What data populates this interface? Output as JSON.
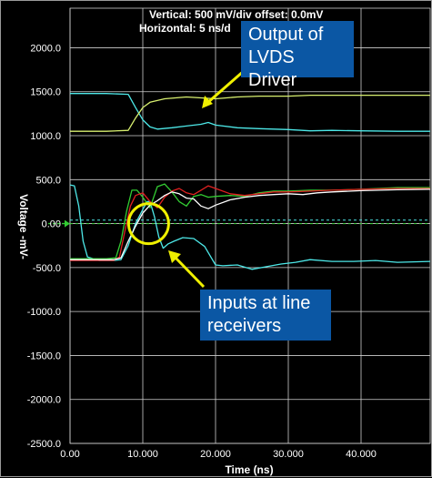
{
  "header": {
    "vertical": "Vertical: 500 mV/div  offset: 0.0mV",
    "horizontal": "Horizontal: 5 ns/d"
  },
  "callouts": {
    "output": "Output of LVDS Driver",
    "inputs": "Inputs at line receivers"
  },
  "chart_data": {
    "type": "line",
    "xlabel": "Time  (ns)",
    "ylabel": "Voltage  -mV-",
    "xlim": [
      0,
      49.5
    ],
    "ylim": [
      -2500,
      2450
    ],
    "x_ticks": [
      "0.00",
      "10.000",
      "20.000",
      "30.000",
      "40.000"
    ],
    "x_tick_values": [
      0,
      10,
      20,
      30,
      40
    ],
    "y_ticks": [
      "2000.0",
      "1500.0",
      "1000.0",
      "500.0",
      "0.00",
      "-500.0",
      "-1000.0",
      "-1500.0",
      "-2000.0",
      "-2500.0"
    ],
    "y_tick_values": [
      2000,
      1500,
      1000,
      500,
      0,
      -500,
      -1000,
      -1500,
      -2000,
      -2500
    ],
    "grid": true,
    "colors": {
      "background": "#000000",
      "grid": "#cfcfcf",
      "cyan": "#4de8e8",
      "green": "#33cc33",
      "red": "#e02020",
      "white": "#ffffff",
      "yellowgreen": "#d8f070",
      "callout": "#0b57a4",
      "highlight": "#f0f000"
    },
    "series": [
      {
        "color": "#4de8e8",
        "values": [
          [
            0,
            1480
          ],
          [
            5,
            1480
          ],
          [
            8,
            1470
          ],
          [
            9,
            1320
          ],
          [
            10,
            1180
          ],
          [
            11,
            1100
          ],
          [
            12,
            1075
          ],
          [
            14,
            1090
          ],
          [
            16,
            1110
          ],
          [
            18,
            1130
          ],
          [
            19,
            1150
          ],
          [
            20,
            1120
          ],
          [
            23,
            1090
          ],
          [
            26,
            1080
          ],
          [
            30,
            1070
          ],
          [
            33,
            1055
          ],
          [
            36,
            1060
          ],
          [
            40,
            1055
          ],
          [
            45,
            1050
          ],
          [
            49.5,
            1050
          ]
        ]
      },
      {
        "color": "#d8f070",
        "values": [
          [
            0,
            1050
          ],
          [
            5,
            1050
          ],
          [
            8,
            1060
          ],
          [
            9,
            1200
          ],
          [
            10,
            1320
          ],
          [
            11,
            1380
          ],
          [
            13,
            1420
          ],
          [
            16,
            1440
          ],
          [
            18,
            1430
          ],
          [
            20,
            1420
          ],
          [
            23,
            1440
          ],
          [
            26,
            1450
          ],
          [
            30,
            1450
          ],
          [
            33,
            1460
          ],
          [
            36,
            1460
          ],
          [
            40,
            1460
          ],
          [
            45,
            1460
          ],
          [
            49.5,
            1460
          ]
        ]
      },
      {
        "color": "#4de8e8",
        "values": [
          [
            0,
            440
          ],
          [
            0.6,
            430
          ],
          [
            1.2,
            200
          ],
          [
            1.8,
            -200
          ],
          [
            2.4,
            -380
          ],
          [
            4,
            -420
          ],
          [
            6,
            -420
          ],
          [
            7,
            -410
          ],
          [
            8,
            -250
          ],
          [
            9,
            0
          ],
          [
            10,
            160
          ],
          [
            10.6,
            250
          ],
          [
            11,
            250
          ],
          [
            11.6,
            80
          ],
          [
            12.2,
            -150
          ],
          [
            12.8,
            -280
          ],
          [
            13.5,
            -230
          ],
          [
            14.3,
            -200
          ],
          [
            15.5,
            -160
          ],
          [
            17,
            -170
          ],
          [
            18.5,
            -260
          ],
          [
            20,
            -470
          ],
          [
            21,
            -480
          ],
          [
            23,
            -470
          ],
          [
            25,
            -520
          ],
          [
            27,
            -490
          ],
          [
            29,
            -460
          ],
          [
            31,
            -440
          ],
          [
            33,
            -410
          ],
          [
            36,
            -430
          ],
          [
            39,
            -430
          ],
          [
            42,
            -420
          ],
          [
            45,
            -440
          ],
          [
            49.5,
            -430
          ]
        ]
      },
      {
        "color": "#33cc33",
        "values": [
          [
            0,
            -400
          ],
          [
            5,
            -400
          ],
          [
            6.3,
            -390
          ],
          [
            7,
            -200
          ],
          [
            7.8,
            150
          ],
          [
            8.5,
            380
          ],
          [
            9.2,
            380
          ],
          [
            10,
            300
          ],
          [
            11,
            180
          ],
          [
            12,
            420
          ],
          [
            13,
            450
          ],
          [
            14,
            360
          ],
          [
            15,
            250
          ],
          [
            16,
            200
          ],
          [
            17,
            310
          ],
          [
            18,
            330
          ],
          [
            19,
            300
          ],
          [
            20,
            310
          ],
          [
            22,
            320
          ],
          [
            24,
            310
          ],
          [
            26,
            350
          ],
          [
            28,
            370
          ],
          [
            30,
            370
          ],
          [
            33,
            380
          ],
          [
            36,
            380
          ],
          [
            40,
            390
          ],
          [
            45,
            410
          ],
          [
            49.5,
            410
          ]
        ]
      },
      {
        "color": "#e02020",
        "values": [
          [
            0,
            -420
          ],
          [
            6,
            -420
          ],
          [
            6.8,
            -380
          ],
          [
            7.5,
            -100
          ],
          [
            8.3,
            200
          ],
          [
            9,
            320
          ],
          [
            10,
            350
          ],
          [
            11,
            250
          ],
          [
            12,
            180
          ],
          [
            13,
            300
          ],
          [
            14,
            370
          ],
          [
            15,
            400
          ],
          [
            16,
            350
          ],
          [
            17,
            330
          ],
          [
            18,
            380
          ],
          [
            19,
            430
          ],
          [
            20,
            400
          ],
          [
            22,
            340
          ],
          [
            24,
            320
          ],
          [
            26,
            340
          ],
          [
            28,
            360
          ],
          [
            30,
            360
          ],
          [
            33,
            370
          ],
          [
            36,
            380
          ],
          [
            40,
            390
          ],
          [
            45,
            400
          ],
          [
            49.5,
            400
          ]
        ]
      },
      {
        "color": "#ffffff",
        "values": [
          [
            0,
            -410
          ],
          [
            6,
            -410
          ],
          [
            7,
            -390
          ],
          [
            8,
            -200
          ],
          [
            9,
            -30
          ],
          [
            10,
            120
          ],
          [
            11,
            210
          ],
          [
            12,
            260
          ],
          [
            13,
            320
          ],
          [
            14,
            360
          ],
          [
            15,
            340
          ],
          [
            16,
            290
          ],
          [
            17,
            280
          ],
          [
            18,
            200
          ],
          [
            19,
            170
          ],
          [
            20,
            210
          ],
          [
            22,
            270
          ],
          [
            24,
            300
          ],
          [
            26,
            320
          ],
          [
            28,
            330
          ],
          [
            30,
            340
          ],
          [
            32,
            330
          ],
          [
            34,
            350
          ],
          [
            36,
            360
          ],
          [
            40,
            375
          ],
          [
            45,
            385
          ],
          [
            49.5,
            390
          ]
        ]
      }
    ],
    "reference_lines": [
      {
        "y": 0,
        "color": "#33cc33",
        "style": "dashed"
      },
      {
        "y": 40,
        "color": "#4de8e8",
        "style": "dashed"
      }
    ],
    "marker_y": 0,
    "highlight_circle": {
      "x": 10.8,
      "y": 0
    }
  }
}
